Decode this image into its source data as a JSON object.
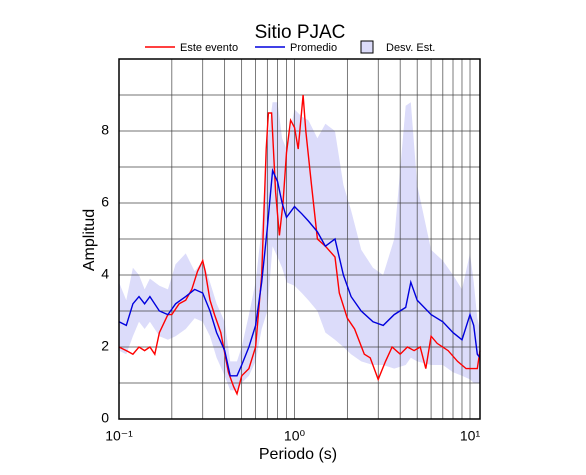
{
  "chart_data": {
    "type": "line",
    "title": "Sitio PJAC",
    "x_label": "Periodo (s)",
    "y_label": "Amplitud",
    "xscale": "log",
    "xlim": [
      0.1,
      11.4
    ],
    "ylim": [
      0,
      10
    ],
    "xticks": [
      {
        "value": 0.1,
        "label": "10⁻¹"
      },
      {
        "value": 1,
        "label": "10⁰"
      },
      {
        "value": 10,
        "label": "10¹"
      }
    ],
    "xminor": [
      0.2,
      0.3,
      0.4,
      0.5,
      0.6,
      0.7,
      0.8,
      0.9,
      2,
      3,
      4,
      5,
      6,
      7,
      8,
      9
    ],
    "yticks": [
      0,
      2,
      4,
      6,
      8
    ],
    "yminor": [
      1,
      3,
      5,
      7,
      9
    ],
    "grid": true,
    "band": {
      "name": "Desv. Est.",
      "color": "#dcdcfa",
      "x": [
        0.1,
        0.11,
        0.12,
        0.13,
        0.14,
        0.15,
        0.17,
        0.19,
        0.21,
        0.24,
        0.27,
        0.3,
        0.33,
        0.36,
        0.4,
        0.43,
        0.47,
        0.5,
        0.55,
        0.6,
        0.65,
        0.7,
        0.75,
        0.8,
        0.85,
        0.9,
        1.0,
        1.1,
        1.2,
        1.35,
        1.5,
        1.7,
        1.9,
        2.1,
        2.4,
        2.8,
        3.2,
        3.7,
        4.3,
        4.6,
        5.0,
        6.0,
        7.0,
        8.0,
        9.0,
        10,
        10.5,
        11,
        11.4
      ],
      "upper": [
        3.8,
        3.3,
        4.2,
        4.0,
        3.6,
        3.9,
        3.7,
        3.6,
        4.3,
        4.6,
        4.1,
        4.4,
        3.8,
        3.2,
        2.7,
        1.6,
        1.6,
        2.0,
        2.9,
        3.8,
        5.3,
        7.7,
        8.8,
        8.8,
        7.8,
        7.5,
        8.6,
        8.4,
        8.3,
        7.8,
        8.2,
        8.0,
        6.5,
        5.8,
        4.7,
        4.2,
        4.0,
        5.0,
        8.7,
        8.8,
        6.5,
        4.7,
        4.4,
        4.0,
        3.6,
        4.6,
        3.8,
        2.8,
        2.5
      ],
      "lower": [
        1.9,
        1.8,
        2.3,
        2.7,
        2.5,
        2.7,
        2.3,
        2.2,
        2.3,
        2.5,
        2.8,
        2.7,
        2.3,
        1.7,
        1.2,
        0.8,
        0.8,
        1.0,
        1.2,
        1.6,
        2.5,
        3.0,
        4.8,
        4.5,
        4.2,
        3.8,
        3.7,
        3.5,
        3.3,
        3.0,
        2.4,
        2.2,
        2.0,
        1.8,
        1.6,
        1.5,
        1.5,
        1.4,
        1.5,
        1.7,
        1.6,
        1.5,
        1.5,
        1.3,
        1.2,
        1.1,
        1.0,
        1.0,
        1.0
      ]
    },
    "series": [
      {
        "name": "Este evento",
        "color": "#ff0000",
        "x": [
          0.1,
          0.11,
          0.12,
          0.13,
          0.14,
          0.15,
          0.16,
          0.17,
          0.19,
          0.2,
          0.22,
          0.24,
          0.26,
          0.28,
          0.3,
          0.31,
          0.33,
          0.35,
          0.38,
          0.42,
          0.45,
          0.47,
          0.5,
          0.55,
          0.6,
          0.65,
          0.69,
          0.71,
          0.74,
          0.78,
          0.82,
          0.86,
          0.9,
          0.95,
          1.0,
          1.05,
          1.12,
          1.16,
          1.25,
          1.35,
          1.5,
          1.7,
          1.8,
          2.0,
          2.2,
          2.5,
          2.7,
          3.0,
          3.3,
          3.6,
          4.0,
          4.4,
          4.8,
          5.2,
          5.6,
          6.0,
          6.5,
          7.5,
          8.5,
          9.5,
          11,
          11.4
        ],
        "values": [
          2.0,
          1.9,
          1.8,
          2.0,
          1.9,
          2.0,
          1.8,
          2.4,
          2.9,
          2.9,
          3.2,
          3.3,
          3.6,
          4.1,
          4.4,
          4.1,
          3.3,
          2.9,
          2.4,
          1.3,
          0.9,
          0.7,
          1.2,
          1.4,
          2.0,
          4.0,
          7.5,
          8.5,
          8.5,
          6.3,
          5.1,
          6.0,
          7.4,
          8.3,
          8.1,
          7.5,
          9.0,
          8.0,
          6.5,
          5.0,
          4.8,
          4.5,
          3.5,
          2.8,
          2.5,
          1.8,
          1.7,
          1.1,
          1.6,
          2.0,
          1.8,
          2.0,
          1.9,
          2.0,
          1.4,
          2.3,
          2.1,
          1.9,
          1.6,
          1.4,
          1.4,
          1.9
        ]
      },
      {
        "name": "Promedio",
        "color": "#0000dd",
        "x": [
          0.1,
          0.11,
          0.12,
          0.13,
          0.14,
          0.15,
          0.17,
          0.19,
          0.21,
          0.24,
          0.27,
          0.3,
          0.33,
          0.36,
          0.4,
          0.43,
          0.47,
          0.5,
          0.55,
          0.6,
          0.65,
          0.7,
          0.75,
          0.8,
          0.85,
          0.9,
          1.0,
          1.1,
          1.2,
          1.35,
          1.5,
          1.7,
          1.9,
          2.1,
          2.4,
          2.8,
          3.2,
          3.7,
          4.3,
          4.6,
          5.0,
          6.0,
          7.0,
          8.0,
          9.0,
          10,
          10.5,
          11,
          11.4
        ],
        "values": [
          2.7,
          2.6,
          3.2,
          3.4,
          3.2,
          3.4,
          3.0,
          2.9,
          3.2,
          3.4,
          3.6,
          3.5,
          3.0,
          2.4,
          1.9,
          1.2,
          1.2,
          1.5,
          2.0,
          2.6,
          3.8,
          5.3,
          6.9,
          6.6,
          6.0,
          5.6,
          5.9,
          5.7,
          5.5,
          5.2,
          4.8,
          5.0,
          4.0,
          3.4,
          3.0,
          2.7,
          2.6,
          2.9,
          3.1,
          3.8,
          3.3,
          2.9,
          2.7,
          2.4,
          2.2,
          2.9,
          2.6,
          1.8,
          1.7
        ]
      }
    ]
  }
}
